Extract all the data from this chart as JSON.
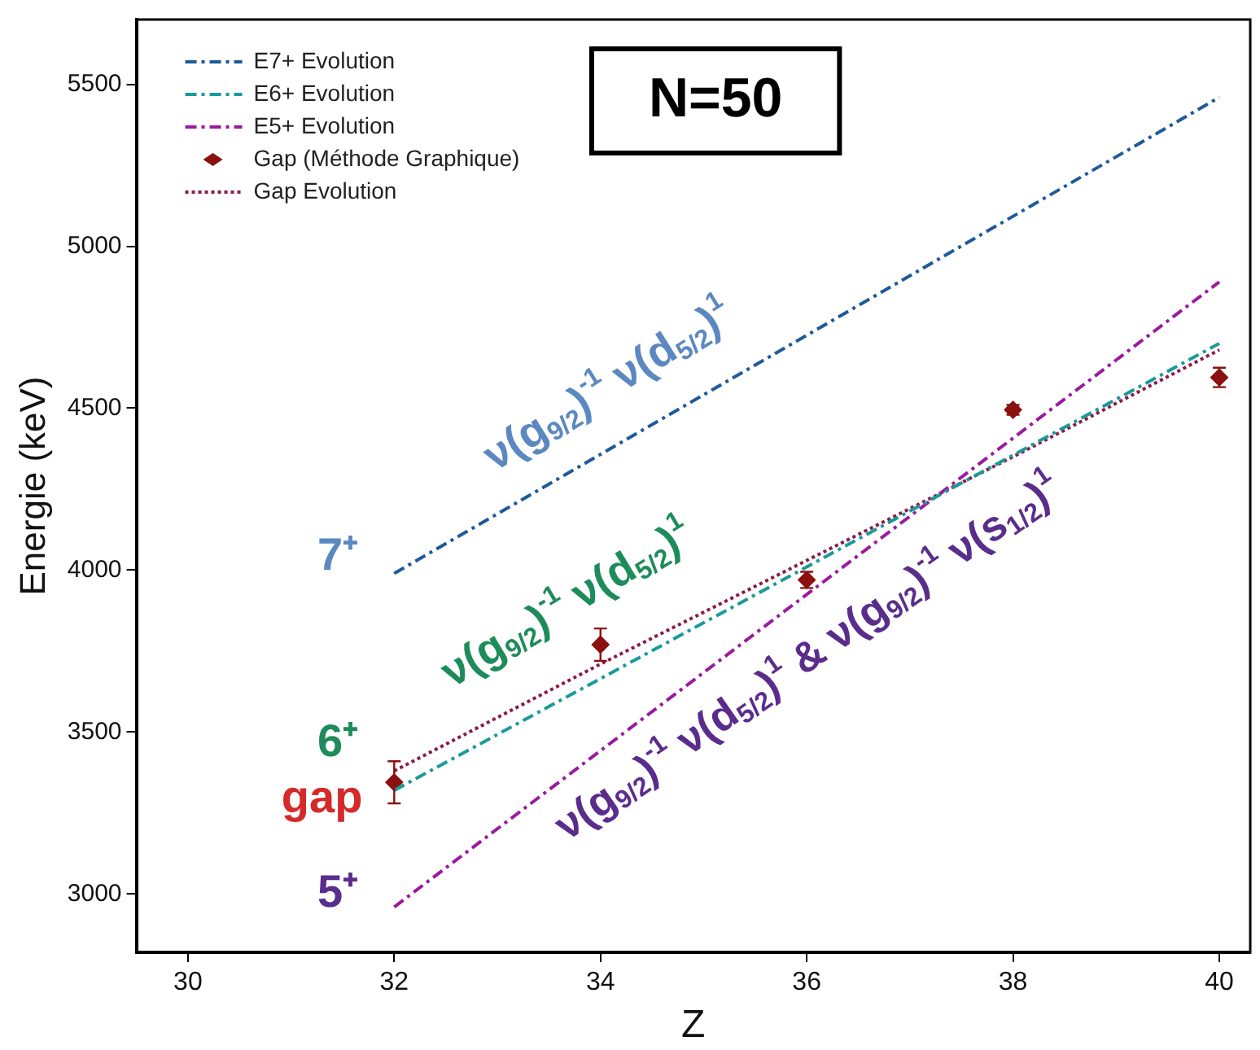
{
  "chart_data": {
    "type": "line",
    "xlabel": "Z",
    "ylabel": "Energie (keV)",
    "xlim": [
      29.5,
      40.3
    ],
    "ylim": [
      2820,
      5700
    ],
    "xticks": [
      30,
      32,
      34,
      36,
      38,
      40
    ],
    "yticks": [
      3000,
      3500,
      4000,
      4500,
      5000,
      5500
    ],
    "grid": false,
    "legend": "top left",
    "series": [
      {
        "name": "E7+ Evolution",
        "color": "#1f5a9a",
        "line_style": "dashed",
        "marker": "none",
        "x": [
          32,
          40
        ],
        "values": [
          3990,
          5460
        ]
      },
      {
        "name": "E6+ Evolution",
        "color": "#1a9a9a",
        "line_style": "dashed",
        "marker": "none",
        "x": [
          32,
          40
        ],
        "values": [
          3320,
          4700
        ]
      },
      {
        "name": "E5+ Evolution",
        "color": "#9a1aa0",
        "line_style": "dashed",
        "marker": "none",
        "x": [
          32,
          40
        ],
        "values": [
          2960,
          4890
        ]
      },
      {
        "name": "Gap (Méthode Graphique)",
        "type": "scatter",
        "color": "#8b1010",
        "marker": "diamond",
        "x": [
          32,
          34,
          36,
          38,
          40
        ],
        "values": [
          3345,
          3770,
          3970,
          4495,
          4595
        ],
        "errors": [
          65,
          50,
          25,
          15,
          30
        ]
      },
      {
        "name": "Gap Evolution",
        "color": "#8b1a4a",
        "line_style": "dotted",
        "marker": "none",
        "x": [
          32,
          34,
          36,
          38,
          40
        ],
        "values": [
          3380,
          3710,
          4030,
          4350,
          4680
        ]
      }
    ],
    "annotations": [
      "N=50",
      "7⁺",
      "6⁺",
      "gap",
      "5⁺",
      "ν(g$_{9/2}$)$^{-1}$ ν(d$_{5/2}$)$^{1}$",
      "ν(g$_{9/2}$)$^{-1}$ ν(d$_{5/2}$)$^{1}$",
      "ν(g$_{9/2}$)$^{-1}$ ν(d$_{5/2}$)$^{1}$ & ν(g$_{9/2}$)$^{-1}$ ν(s$_{1/2}$)$^{1}$"
    ]
  }
}
